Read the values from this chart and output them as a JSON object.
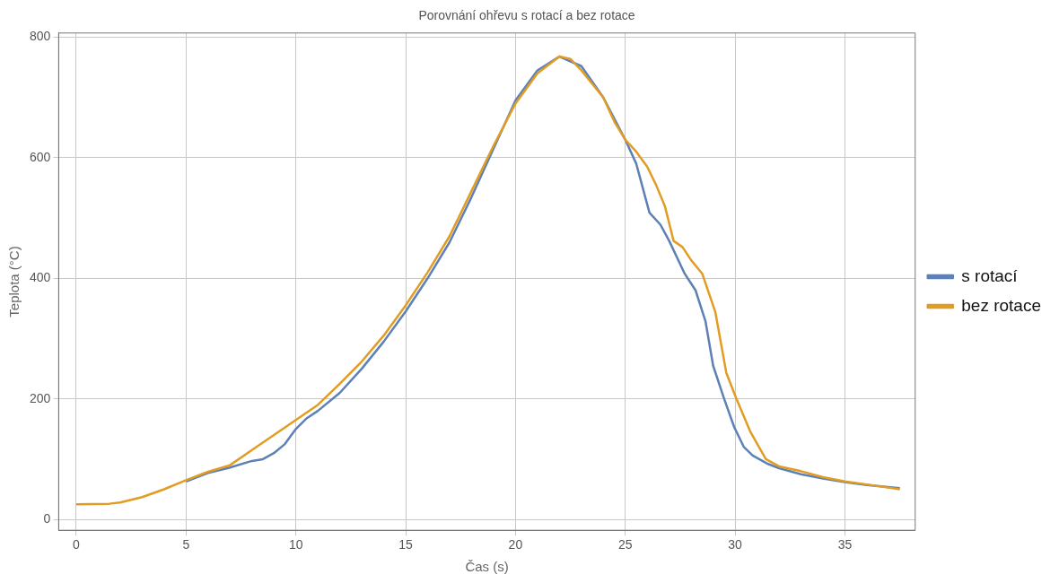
{
  "chart_data": {
    "type": "line",
    "title": "Porovnání ohřevu s rotací a bez rotace",
    "xlabel": "Čas (s)",
    "ylabel": "Teplota (°C)",
    "xlim": [
      -0.8,
      38.2
    ],
    "xticks": [
      0,
      5,
      10,
      15,
      20,
      25,
      30,
      35
    ],
    "ylim": [
      -18,
      807
    ],
    "yticks": [
      0,
      200,
      400,
      600,
      800
    ],
    "grid": true,
    "legend": "right",
    "marker": "none",
    "line_style": "solid",
    "series": [
      {
        "name": "s rotací",
        "color": "#5e81b5",
        "x": [
          5,
          6,
          7,
          8,
          8.5,
          9,
          9.5,
          10,
          10.5,
          11,
          12,
          13,
          14,
          15,
          16,
          17,
          18,
          19,
          20,
          21,
          22,
          23,
          24,
          25,
          25.5,
          26.1,
          26.6,
          27,
          27.7,
          28.2,
          28.65,
          29,
          29.5,
          29.96,
          30.4,
          30.8,
          31.5,
          32,
          33,
          34,
          35,
          36,
          37.5
        ],
        "values": [
          63,
          77,
          86,
          97,
          100,
          110,
          125,
          150,
          168,
          180,
          210,
          250,
          295,
          345,
          400,
          460,
          535,
          615,
          695,
          745,
          768,
          752,
          700,
          630,
          590,
          509,
          489,
          462,
          408,
          380,
          329,
          255,
          200,
          153,
          120,
          106,
          92,
          85,
          75,
          68,
          62,
          57,
          52
        ]
      },
      {
        "name": "bez rotace",
        "color": "#e19c24",
        "x": [
          0,
          1.5,
          2,
          3,
          4,
          5,
          6,
          7,
          8,
          9,
          10,
          11,
          12,
          13,
          14,
          15,
          16,
          17,
          18,
          19,
          20,
          21,
          22,
          22.5,
          23,
          24,
          24.5,
          25,
          25.5,
          26,
          26.4,
          26.8,
          27.2,
          27.6,
          28,
          28.5,
          29.1,
          29.6,
          30.05,
          30.7,
          31.4,
          32,
          33,
          34,
          35,
          36,
          37.5
        ],
        "values": [
          25,
          26,
          28,
          37,
          50,
          65,
          79,
          90,
          115,
          140,
          165,
          190,
          225,
          262,
          305,
          355,
          410,
          470,
          545,
          620,
          690,
          740,
          768,
          764,
          745,
          700,
          660,
          630,
          610,
          585,
          555,
          520,
          462,
          452,
          430,
          408,
          344,
          243,
          201,
          145,
          100,
          88,
          80,
          70,
          63,
          58,
          50
        ]
      }
    ]
  }
}
